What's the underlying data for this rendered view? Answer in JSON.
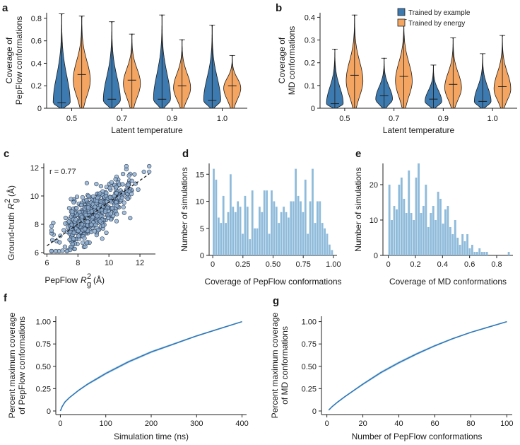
{
  "colors": {
    "example": "#3d7ab0",
    "energy": "#f4a561",
    "hist": "#8fbbdb",
    "scatter": "#8eaed0",
    "curve": "#2e78b8",
    "band": "#b9d3ea"
  },
  "legend": {
    "example": "Trained by example",
    "energy": "Trained by energy"
  },
  "chart_data": [
    {
      "panel": "a",
      "type": "violin",
      "xlabel": "Latent temperature",
      "ylabel": [
        "Coverage of",
        "PepFlow conformations"
      ],
      "ylim": [
        0,
        0.85
      ],
      "yticks": [
        0,
        0.2,
        0.4,
        0.6,
        0.8
      ],
      "ytick_labels": [
        "0",
        "0.2",
        "0.4",
        "0.6",
        "0.8"
      ],
      "categories": [
        "0.5",
        "0.7",
        "0.9",
        "1.0"
      ],
      "series": [
        {
          "name": "Trained by example",
          "max": [
            0.84,
            0.77,
            0.83,
            0.74
          ],
          "median": [
            0.05,
            0.08,
            0.08,
            0.07
          ],
          "mode": [
            0.05,
            0.07,
            0.08,
            0.07
          ]
        },
        {
          "name": "Trained by energy",
          "max": [
            0.82,
            0.66,
            0.61,
            0.47
          ],
          "median": [
            0.3,
            0.25,
            0.2,
            0.2
          ],
          "mode": [
            0.25,
            0.22,
            0.18,
            0.18
          ]
        }
      ]
    },
    {
      "panel": "b",
      "type": "violin",
      "xlabel": "Latent temperature",
      "ylabel": [
        "Coverage of",
        "MD conformations"
      ],
      "ylim": [
        0,
        0.42
      ],
      "yticks": [
        0,
        0.1,
        0.2,
        0.3,
        0.4
      ],
      "ytick_labels": [
        "0",
        "0.1",
        "0.2",
        "0.3",
        "0.4"
      ],
      "categories": [
        "0.5",
        "0.7",
        "0.9",
        "1.0"
      ],
      "series": [
        {
          "name": "Trained by example",
          "max": [
            0.26,
            0.22,
            0.19,
            0.24
          ],
          "median": [
            0.02,
            0.055,
            0.04,
            0.03
          ],
          "mode": [
            0.02,
            0.04,
            0.03,
            0.03
          ]
        },
        {
          "name": "Trained by energy",
          "max": [
            0.41,
            0.39,
            0.31,
            0.32
          ],
          "median": [
            0.145,
            0.14,
            0.105,
            0.095
          ],
          "mode": [
            0.12,
            0.12,
            0.09,
            0.085
          ]
        }
      ]
    },
    {
      "panel": "c",
      "type": "scatter",
      "xlabel": "PepFlow",
      "ylabel": "Ground-truth",
      "rg_symbol": "R",
      "rg_sup": "2",
      "rg_sub": "g",
      "unit": "(Å)",
      "annotation": "r = 0.77",
      "r": 0.77,
      "xlim": [
        5.8,
        13.0
      ],
      "ylim": [
        5.9,
        12.3
      ],
      "xticks": [
        6,
        8,
        10,
        12
      ],
      "yticks": [
        6,
        8,
        10,
        12
      ],
      "n_points": 520,
      "fit": {
        "slope": 0.77,
        "intercept": 1.86
      }
    },
    {
      "panel": "d",
      "type": "histogram",
      "xlabel": "Coverage of PepFlow conformations",
      "ylabel": "Number of simulations",
      "xlim": [
        -0.03,
        1.03
      ],
      "ylim": [
        0,
        17
      ],
      "xticks": [
        0,
        0.25,
        0.5,
        0.75,
        1.0
      ],
      "xtick_labels": [
        "0",
        "0.25",
        "0.50",
        "0.75",
        "1.00"
      ],
      "yticks": [
        0,
        5,
        10,
        15
      ],
      "bin_start": 0,
      "bin_width": 0.02,
      "counts": [
        16,
        14,
        7,
        6,
        11,
        6,
        8,
        15,
        9,
        8,
        10,
        9,
        4,
        11,
        9,
        3,
        12,
        5,
        5,
        9,
        8,
        12,
        12,
        4,
        12,
        10,
        9,
        6,
        8,
        9,
        8,
        7,
        10,
        10,
        16,
        11,
        10,
        8,
        14,
        4,
        10,
        16,
        6,
        10,
        10,
        6,
        5,
        4,
        2,
        1
      ]
    },
    {
      "panel": "e",
      "type": "histogram",
      "xlabel": "Coverage of MD conformations",
      "ylabel": "Number of simulations",
      "xlim": [
        -0.04,
        0.92
      ],
      "ylim": [
        0,
        26
      ],
      "xticks": [
        0,
        0.2,
        0.4,
        0.6,
        0.8
      ],
      "xtick_labels": [
        "0",
        "0.2",
        "0.4",
        "0.6",
        "0.8"
      ],
      "yticks": [
        0,
        10,
        20
      ],
      "bin_start": 0,
      "bin_width": 0.018,
      "counts": [
        20,
        10,
        14,
        13,
        20,
        22,
        16,
        12,
        24,
        12,
        10,
        22,
        26,
        12,
        14,
        20,
        8,
        12,
        14,
        10,
        18,
        16,
        9,
        13,
        14,
        8,
        6,
        10,
        5,
        3,
        6,
        4,
        6,
        2,
        3,
        1,
        1,
        2,
        1,
        1,
        1,
        0,
        0,
        0,
        0,
        0,
        0,
        0,
        0,
        1
      ]
    },
    {
      "panel": "f",
      "type": "line",
      "xlabel": "Simulation time (ns)",
      "ylabel": [
        "Percent maximum coverage",
        "of PepFlow conformations"
      ],
      "xlim": [
        -10,
        410
      ],
      "ylim": [
        -0.04,
        1.06
      ],
      "xticks": [
        0,
        100,
        200,
        300,
        400
      ],
      "yticks": [
        0,
        0.25,
        0.5,
        0.75,
        1.0
      ],
      "ytick_labels": [
        "0",
        "0.25",
        "0.50",
        "0.75",
        "1.00"
      ],
      "x": [
        0,
        4,
        10,
        20,
        40,
        60,
        80,
        100,
        150,
        200,
        250,
        300,
        350,
        400
      ],
      "y": [
        0.0,
        0.05,
        0.1,
        0.15,
        0.23,
        0.3,
        0.36,
        0.42,
        0.55,
        0.66,
        0.75,
        0.84,
        0.92,
        1.0
      ]
    },
    {
      "panel": "g",
      "type": "line",
      "xlabel": "Number of PepFlow conformations",
      "ylabel": [
        "Percent maximum coverage",
        "of MD conformations"
      ],
      "xlim": [
        -3,
        103
      ],
      "ylim": [
        -0.04,
        1.06
      ],
      "xticks": [
        0,
        20,
        40,
        60,
        80,
        100
      ],
      "yticks": [
        0,
        0.25,
        0.5,
        0.75,
        1.0
      ],
      "ytick_labels": [
        "0",
        "0.25",
        "0.50",
        "0.75",
        "1.00"
      ],
      "x": [
        1,
        3,
        6,
        10,
        15,
        20,
        30,
        40,
        50,
        60,
        70,
        80,
        90,
        100
      ],
      "y": [
        0.01,
        0.05,
        0.1,
        0.16,
        0.23,
        0.3,
        0.43,
        0.54,
        0.64,
        0.73,
        0.81,
        0.88,
        0.94,
        1.0
      ]
    }
  ]
}
